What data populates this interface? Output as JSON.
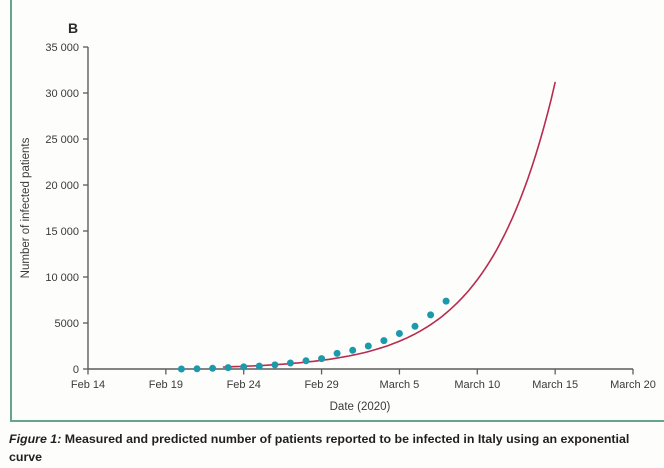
{
  "figure": {
    "panel_label": "B",
    "caption": {
      "prefix": "Figure 1:",
      "body": "Measured and predicted number of patients reported to be infected in Italy using an exponential curve"
    }
  },
  "chart_data": {
    "type": "scatter",
    "title": "",
    "xlabel": "Date (2020)",
    "ylabel": "Number of infected patients",
    "grid": false,
    "legend": "none",
    "x_axis": {
      "tick_labels": [
        "Feb 14",
        "Feb 19",
        "Feb 24",
        "Feb 29",
        "March 5",
        "March 10",
        "March 15",
        "March 20"
      ],
      "tick_days_from_feb14": [
        0,
        5,
        10,
        15,
        20,
        25,
        30,
        35
      ],
      "range_days": [
        0,
        35
      ]
    },
    "y_axis": {
      "tick_labels": [
        "0",
        "5000",
        "10 000",
        "15 000",
        "20 000",
        "25 000",
        "30 000",
        "35 000"
      ],
      "tick_values": [
        0,
        5000,
        10000,
        15000,
        20000,
        25000,
        30000,
        35000
      ],
      "range": [
        0,
        35000
      ]
    },
    "series": [
      {
        "name": "Measured number of infected patients",
        "type": "scatter",
        "color": "#1d99ac",
        "dates": [
          "Feb 20",
          "Feb 21",
          "Feb 22",
          "Feb 23",
          "Feb 24",
          "Feb 25",
          "Feb 26",
          "Feb 27",
          "Feb 28",
          "Feb 29",
          "March 1",
          "March 2",
          "March 3",
          "March 4",
          "March 5",
          "March 6",
          "March 7",
          "March 8"
        ],
        "days_from_feb14": [
          6,
          7,
          8,
          9,
          10,
          11,
          12,
          13,
          14,
          15,
          16,
          17,
          18,
          19,
          20,
          21,
          22,
          23
        ],
        "values": [
          3,
          20,
          79,
          150,
          227,
          320,
          445,
          650,
          888,
          1128,
          1694,
          2036,
          2502,
          3089,
          3858,
          4636,
          5883,
          7375
        ]
      },
      {
        "name": "Predicted number of infected patients (exponential curve)",
        "type": "line",
        "color": "#b72c4e",
        "model": {
          "kind": "exponential",
          "growth_rate_per_day": 0.233
        },
        "date_range": [
          "Feb 23",
          "March 15"
        ],
        "days_from_feb14": [
          8.7,
          9,
          10,
          11,
          12,
          13,
          14,
          15,
          16,
          17,
          18,
          19,
          20,
          21,
          22,
          23,
          24,
          25,
          26,
          27,
          28,
          29,
          30
        ],
        "values": [
          215,
          232,
          293,
          370,
          467,
          590,
          745,
          941,
          1188,
          1500,
          1894,
          2392,
          3021,
          3814,
          4817,
          6082,
          7680,
          9699,
          12247,
          15464,
          19528,
          24658,
          31139
        ]
      }
    ]
  },
  "colors": {
    "measured_dot": "#1d99ac",
    "predicted_line": "#b72c4e",
    "axis": "#5d5d5d",
    "panel_border": "#63a492",
    "text": "#3a3a3a",
    "background": "#fdfdfb"
  }
}
